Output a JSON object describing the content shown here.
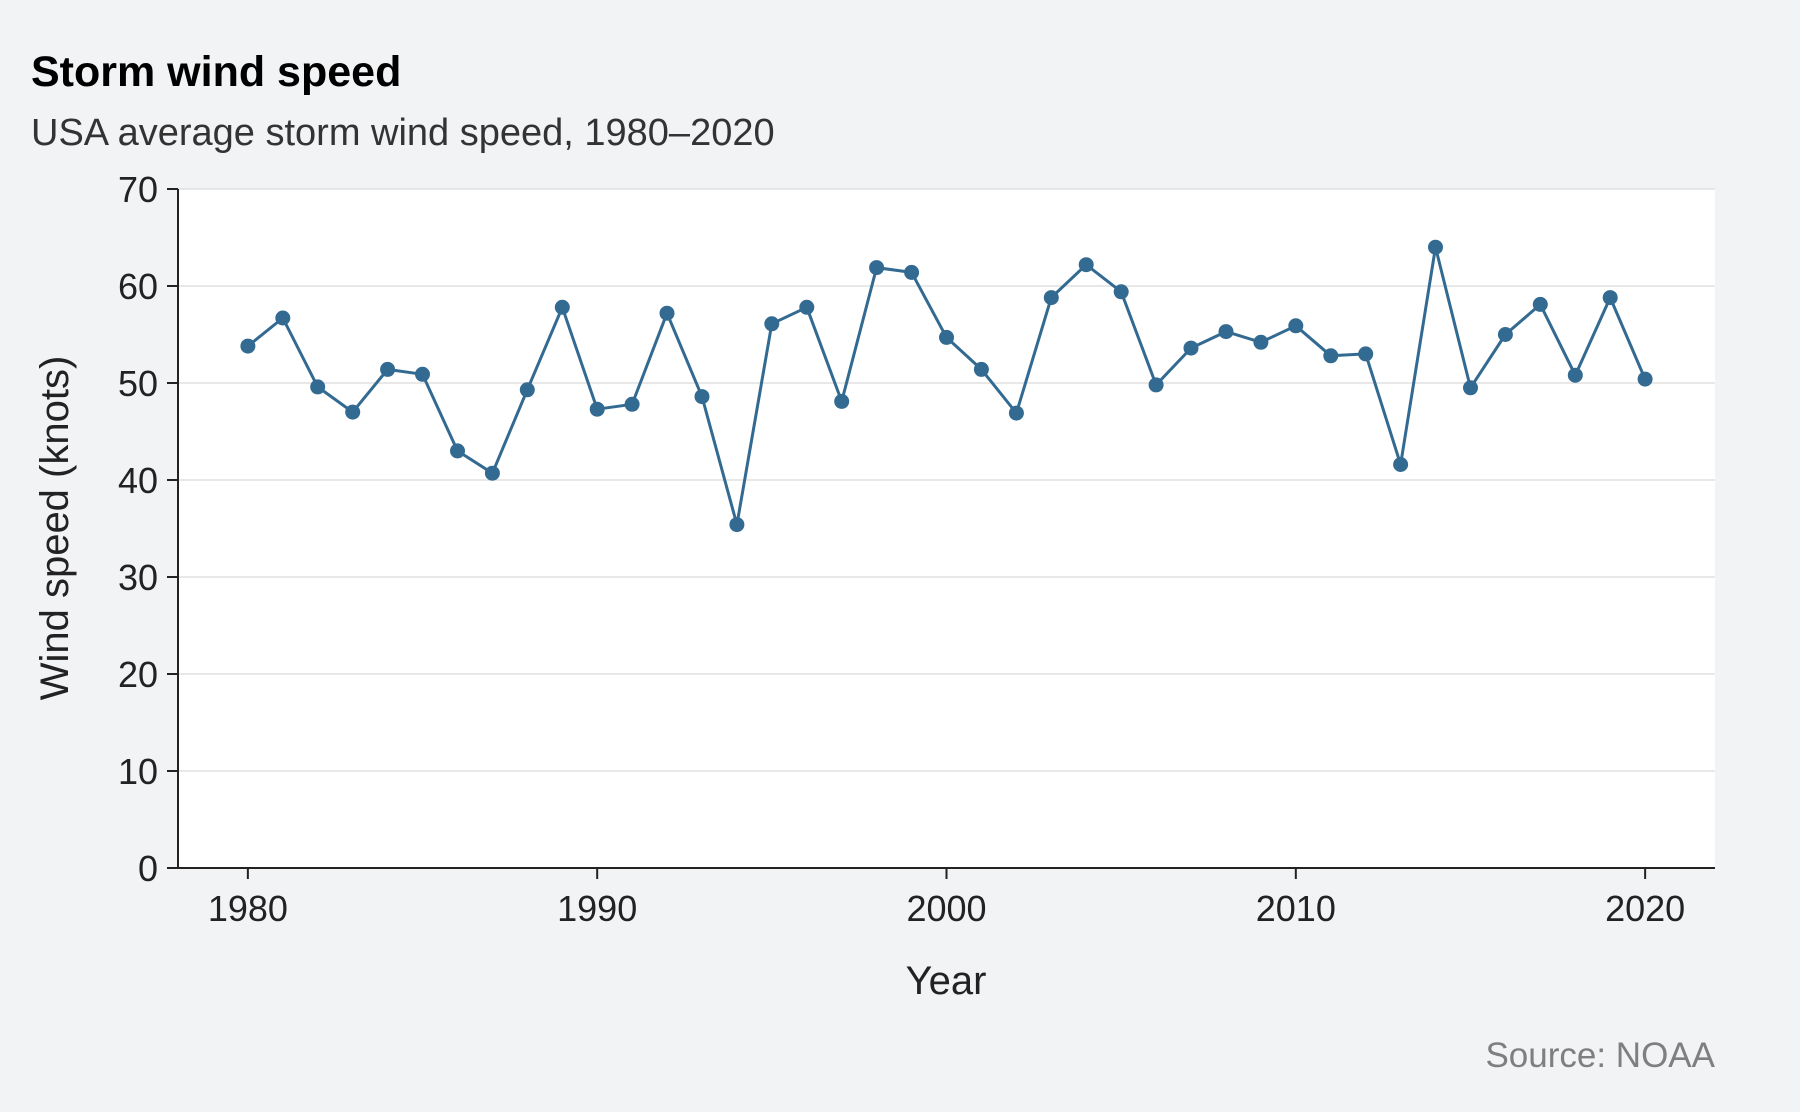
{
  "title": "Storm wind speed",
  "subtitle": "USA average storm wind speed, 1980–2020",
  "caption": "Source: NOAA",
  "colors": {
    "background": "#f2f3f5",
    "panel": "#ffffff",
    "series": "#336a91"
  },
  "chart_data": {
    "type": "line",
    "title": "Storm wind speed",
    "subtitle": "USA average storm wind speed, 1980–2020",
    "xlabel": "Year",
    "ylabel": "Wind speed (knots)",
    "xlim": [
      1978,
      2022
    ],
    "ylim": [
      0,
      70
    ],
    "xticks": [
      1980,
      1990,
      2000,
      2010,
      2020
    ],
    "yticks": [
      0,
      10,
      20,
      30,
      40,
      50,
      60,
      70
    ],
    "grid": "horizontal",
    "markers": true,
    "x": [
      1980,
      1981,
      1982,
      1983,
      1984,
      1985,
      1986,
      1987,
      1988,
      1989,
      1990,
      1991,
      1992,
      1993,
      1994,
      1995,
      1996,
      1997,
      1998,
      1999,
      2000,
      2001,
      2002,
      2003,
      2004,
      2005,
      2006,
      2007,
      2008,
      2009,
      2010,
      2011,
      2012,
      2013,
      2014,
      2015,
      2016,
      2017,
      2018,
      2019,
      2020
    ],
    "y": [
      53.8,
      56.7,
      49.6,
      47.0,
      51.4,
      50.9,
      43.0,
      40.7,
      49.3,
      57.8,
      47.3,
      47.8,
      57.2,
      48.6,
      35.4,
      56.1,
      57.8,
      48.1,
      61.9,
      61.4,
      54.7,
      51.4,
      46.9,
      58.8,
      62.2,
      59.4,
      49.8,
      53.6,
      55.3,
      54.2,
      55.9,
      52.8,
      53.0,
      41.6,
      64.0,
      49.5,
      55.0,
      58.1,
      50.8,
      58.8,
      50.4
    ]
  }
}
